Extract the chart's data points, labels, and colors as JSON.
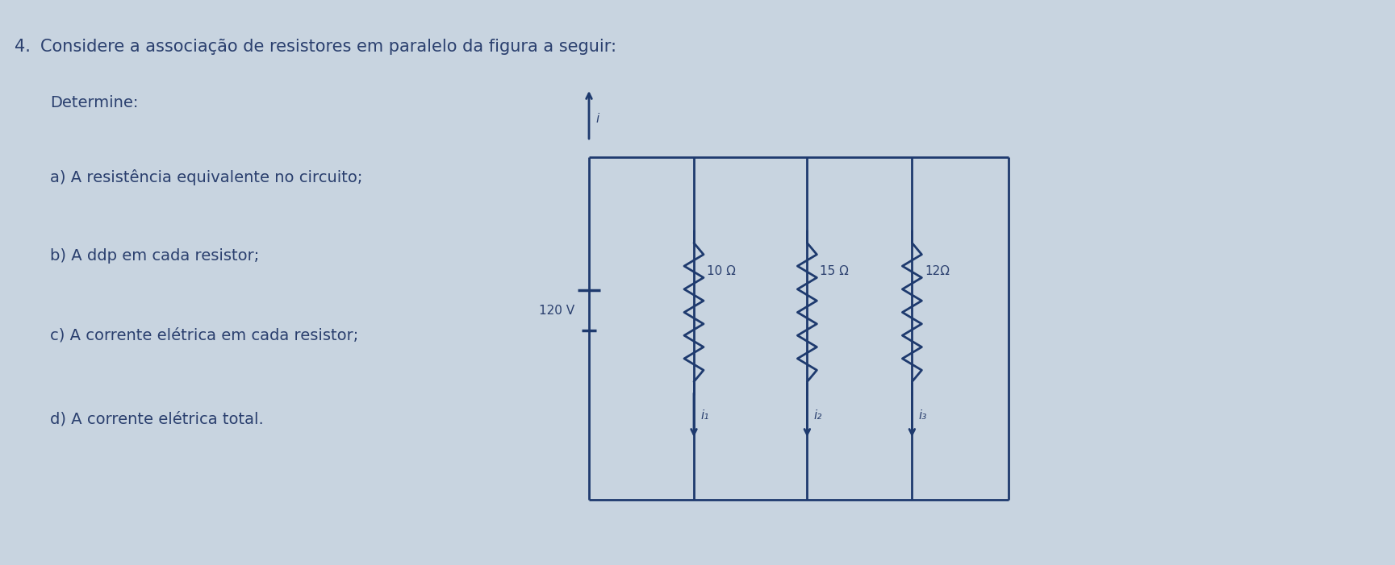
{
  "bg_color": "#c8d4e0",
  "text_color": "#2a3f6e",
  "line_color": "#1e3a6e",
  "question_number": "4.",
  "question_text": "Considere a associação de resistores em paralelo da figura a seguir:",
  "determine_label": "Determine:",
  "items": [
    "a) A resistência equivalente no circuito;",
    "b) A ddp em cada resistor;",
    "c) A corrente elétrica em cada resistor;",
    "d) A corrente elétrica total."
  ],
  "voltage_label": "120 V",
  "resistor_labels": [
    "10 Ω",
    "15 Ω",
    "12Ω"
  ],
  "current_main": "i",
  "current_branch": [
    "i₁",
    "i₂",
    "i₃"
  ],
  "font_size_question": 15,
  "font_size_items": 14,
  "font_size_circuit": 11
}
